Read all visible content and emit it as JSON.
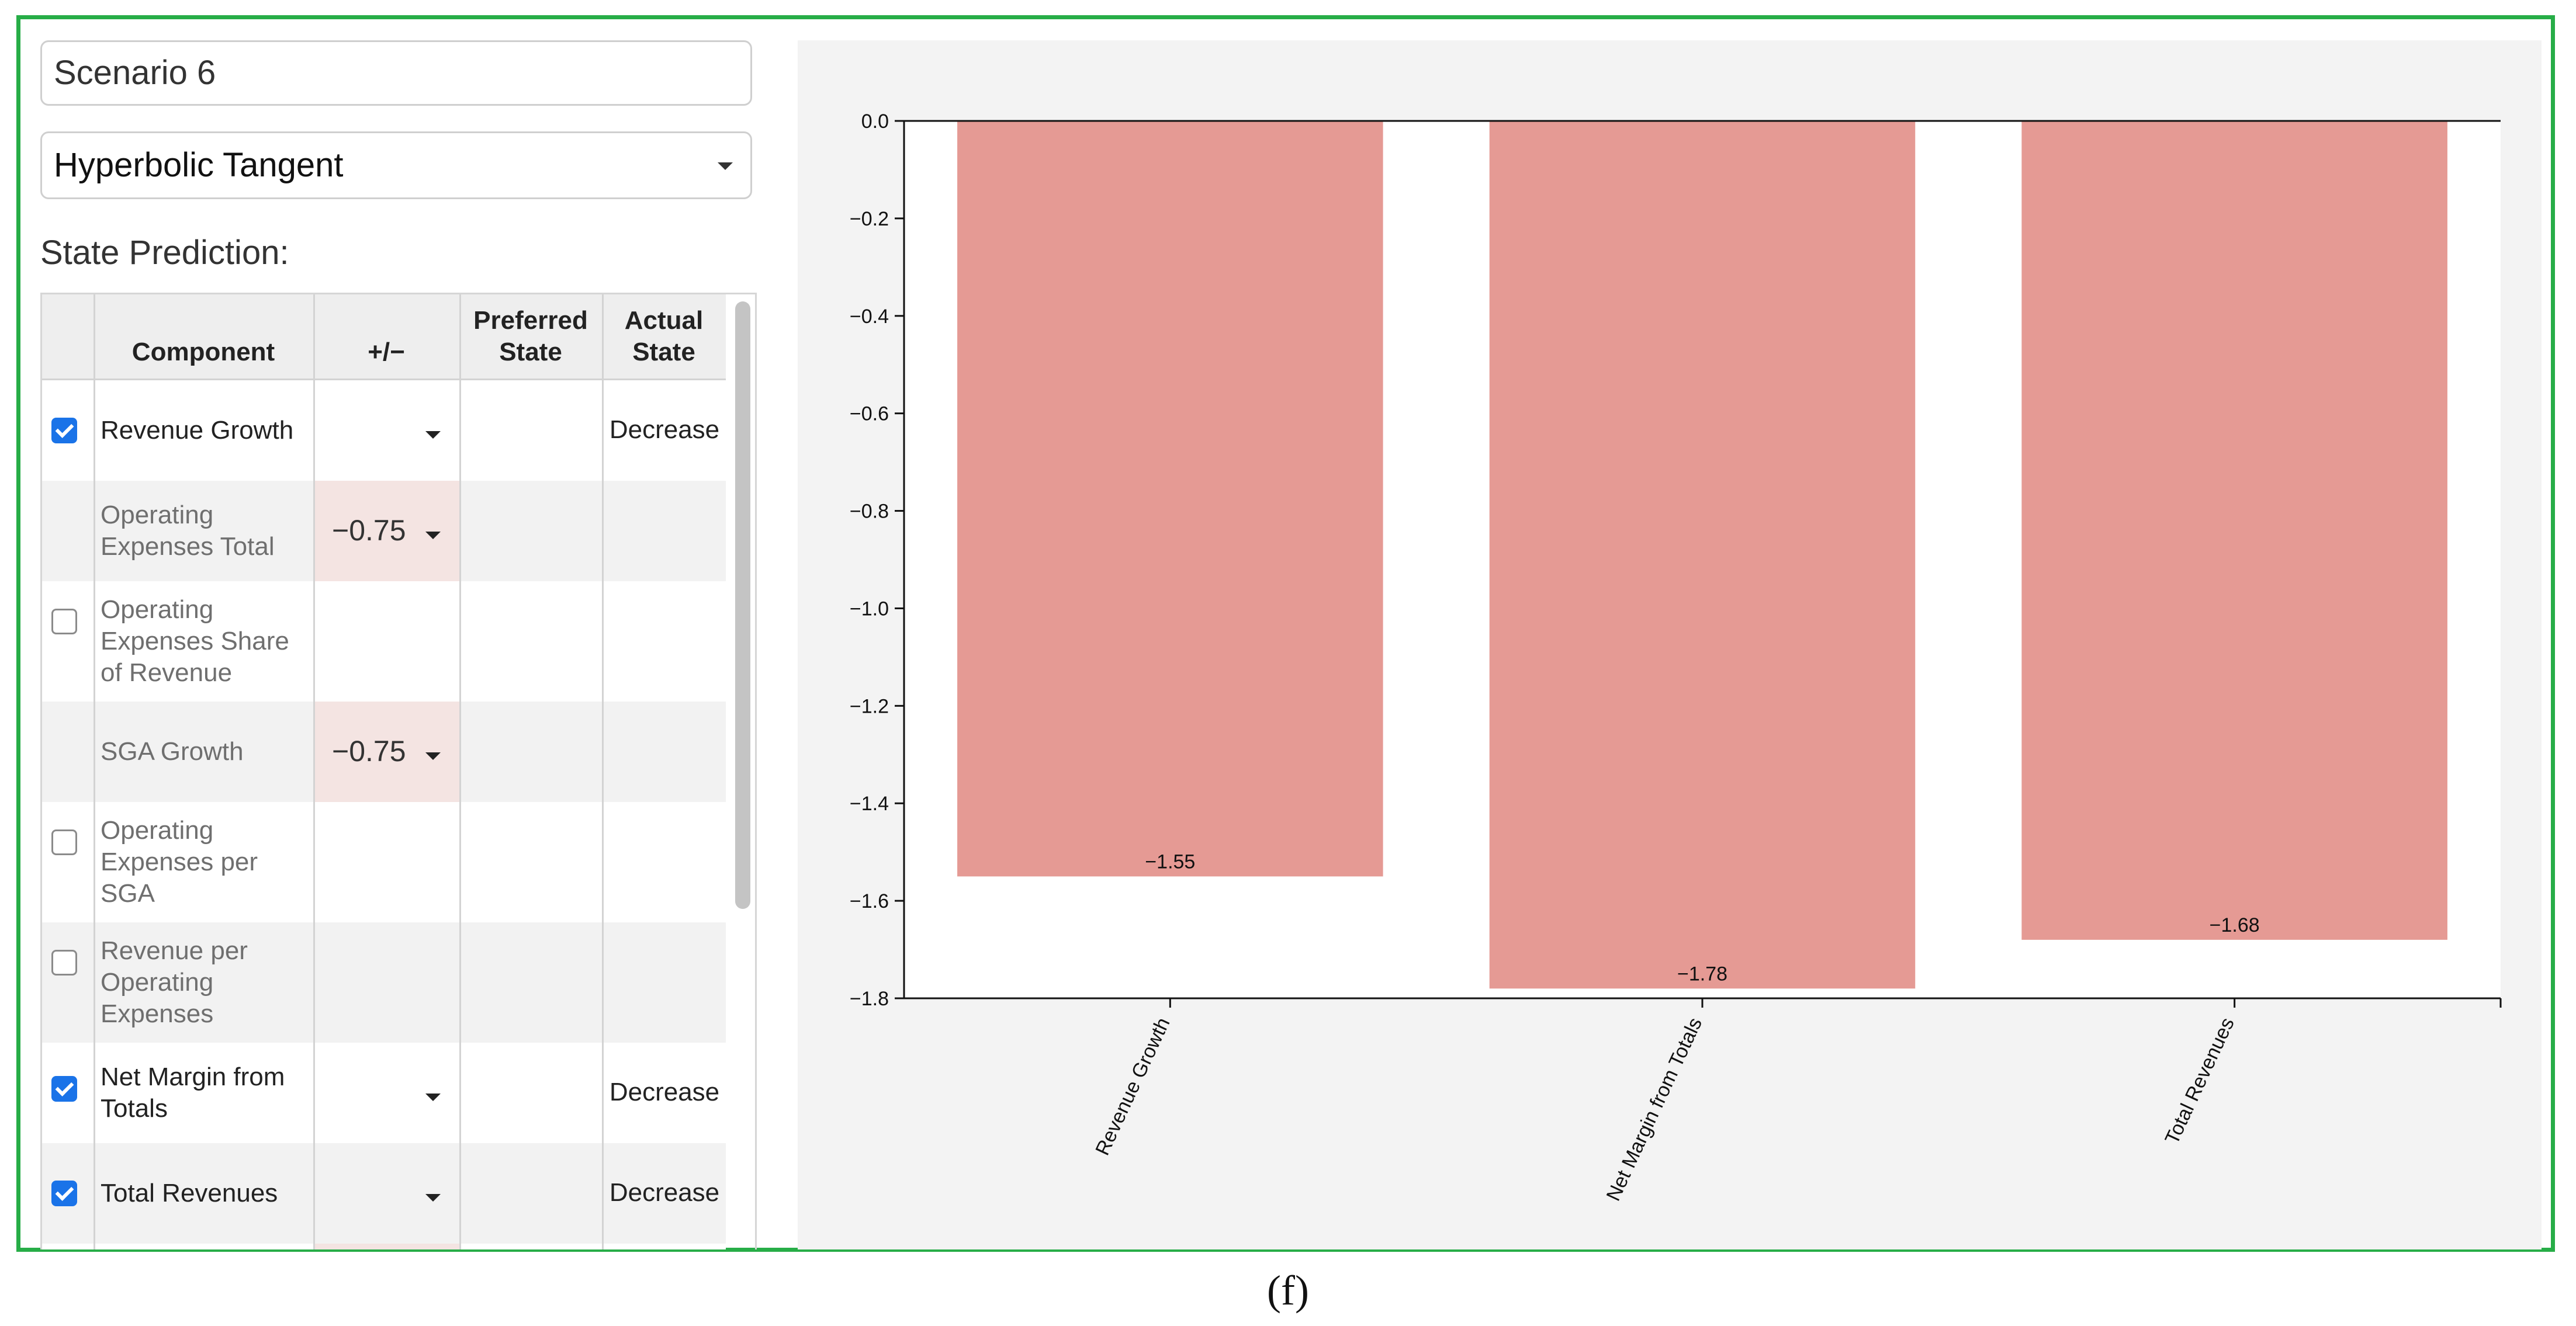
{
  "scenario": {
    "name": "Scenario 6"
  },
  "activation": {
    "selected": "Hyperbolic Tangent"
  },
  "state_prediction_label": "State Prediction:",
  "table": {
    "headers": {
      "component": "Component",
      "plusminus": "+/−",
      "preferred": "Preferred State",
      "actual": "Actual State"
    },
    "rows": [
      {
        "component": "Revenue Growth",
        "checkbox": "checked",
        "plusminus": "",
        "has_dropdown": true,
        "tinted": false,
        "actual": "Decrease",
        "muted": false
      },
      {
        "component": "Operating Expenses Total",
        "checkbox": "none",
        "plusminus": "−0.75",
        "has_dropdown": true,
        "tinted": true,
        "actual": "",
        "muted": true
      },
      {
        "component": "Operating Expenses Share of Revenue",
        "checkbox": "unchecked",
        "plusminus": "",
        "has_dropdown": false,
        "tinted": false,
        "actual": "",
        "muted": true
      },
      {
        "component": "SGA Growth",
        "checkbox": "none",
        "plusminus": "−0.75",
        "has_dropdown": true,
        "tinted": true,
        "actual": "",
        "muted": true
      },
      {
        "component": "Operating Expenses per SGA",
        "checkbox": "unchecked",
        "plusminus": "",
        "has_dropdown": false,
        "tinted": false,
        "actual": "",
        "muted": true
      },
      {
        "component": "Revenue per Operating Expenses",
        "checkbox": "unchecked",
        "plusminus": "",
        "has_dropdown": false,
        "tinted": false,
        "actual": "",
        "muted": true
      },
      {
        "component": "Net Margin from Totals",
        "checkbox": "checked",
        "plusminus": "",
        "has_dropdown": true,
        "tinted": false,
        "actual": "Decrease",
        "muted": false
      },
      {
        "component": "Total Revenues",
        "checkbox": "checked",
        "plusminus": "",
        "has_dropdown": true,
        "tinted": false,
        "actual": "Decrease",
        "muted": false
      }
    ]
  },
  "chart_data": {
    "type": "bar",
    "categories": [
      "Revenue Growth",
      "Net Margin from Totals",
      "Total Revenues"
    ],
    "values": [
      -1.55,
      -1.78,
      -1.68
    ],
    "value_labels": [
      "−1.55",
      "−1.78",
      "−1.68"
    ],
    "ylim": [
      -1.8,
      0.0
    ],
    "yticks": [
      0.0,
      -0.2,
      -0.4,
      -0.6,
      -0.8,
      -1.0,
      -1.2,
      -1.4,
      -1.6,
      -1.8
    ],
    "ytick_labels": [
      "0.0",
      "−0.2",
      "−0.4",
      "−0.6",
      "−0.8",
      "−1.0",
      "−1.2",
      "−1.4",
      "−1.6",
      "−1.8"
    ],
    "title": "",
    "xlabel": "",
    "ylabel": "",
    "bar_color": "#e59a94",
    "grid": false
  },
  "caption": "(f)"
}
